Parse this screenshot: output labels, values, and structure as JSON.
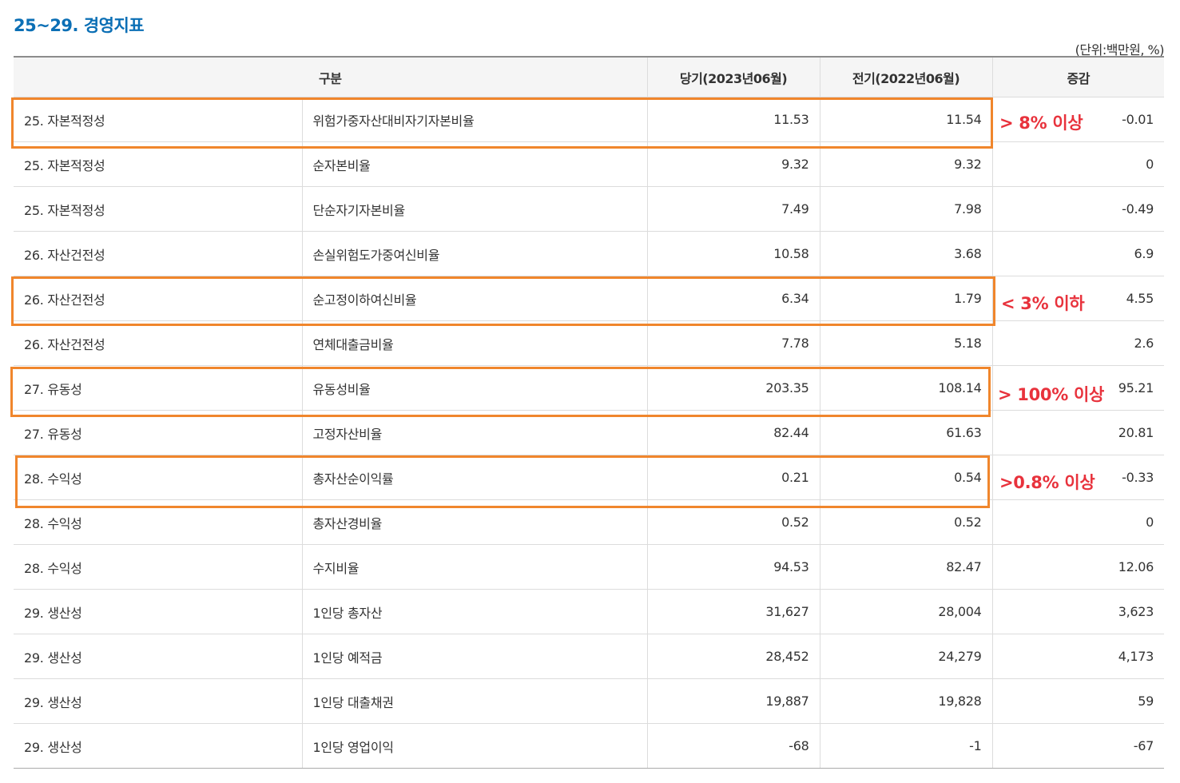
{
  "title": "25~29. 경영지표",
  "unit_note": "(단위:백만원, %)",
  "columns": {
    "category": "구분",
    "current": "당기(2023년06월)",
    "previous": "전기(2022년06월)",
    "change": "증감"
  },
  "rows": [
    {
      "group": "25. 자본적정성",
      "item": "위험가중자산대비자기자본비율",
      "current": "11.53",
      "previous": "11.54",
      "change": "-0.01"
    },
    {
      "group": "25. 자본적정성",
      "item": "순자본비율",
      "current": "9.32",
      "previous": "9.32",
      "change": "0"
    },
    {
      "group": "25. 자본적정성",
      "item": "단순자기자본비율",
      "current": "7.49",
      "previous": "7.98",
      "change": "-0.49"
    },
    {
      "group": "26. 자산건전성",
      "item": "손실위험도가중여신비율",
      "current": "10.58",
      "previous": "3.68",
      "change": "6.9"
    },
    {
      "group": "26. 자산건전성",
      "item": "순고정이하여신비율",
      "current": "6.34",
      "previous": "1.79",
      "change": "4.55"
    },
    {
      "group": "26. 자산건전성",
      "item": "연체대출금비율",
      "current": "7.78",
      "previous": "5.18",
      "change": "2.6"
    },
    {
      "group": "27. 유동성",
      "item": "유동성비율",
      "current": "203.35",
      "previous": "108.14",
      "change": "95.21"
    },
    {
      "group": "27. 유동성",
      "item": "고정자산비율",
      "current": "82.44",
      "previous": "61.63",
      "change": "20.81"
    },
    {
      "group": "28. 수익성",
      "item": "총자산순이익률",
      "current": "0.21",
      "previous": "0.54",
      "change": "-0.33"
    },
    {
      "group": "28. 수익성",
      "item": "총자산경비율",
      "current": "0.52",
      "previous": "0.52",
      "change": "0"
    },
    {
      "group": "28. 수익성",
      "item": "수지비율",
      "current": "94.53",
      "previous": "82.47",
      "change": "12.06"
    },
    {
      "group": "29. 생산성",
      "item": "1인당 총자산",
      "current": "31,627",
      "previous": "28,004",
      "change": "3,623"
    },
    {
      "group": "29. 생산성",
      "item": "1인당 예적금",
      "current": "28,452",
      "previous": "24,279",
      "change": "4,173"
    },
    {
      "group": "29. 생산성",
      "item": "1인당 대출채권",
      "current": "19,887",
      "previous": "19,828",
      "change": "59"
    },
    {
      "group": "29. 생산성",
      "item": "1인당 영업이익",
      "current": "-68",
      "previous": "-1",
      "change": "-67"
    }
  ],
  "annotations": {
    "capital": "> 8% 이상",
    "npl": "< 3% 이하",
    "liquidity": "> 100% 이상",
    "roa": ">0.8% 이상"
  },
  "colors": {
    "title": "#0b6fb5",
    "highlight_box": "#f0862c",
    "annotation_text": "#e8323c",
    "header_bg": "#f5f5f5"
  }
}
